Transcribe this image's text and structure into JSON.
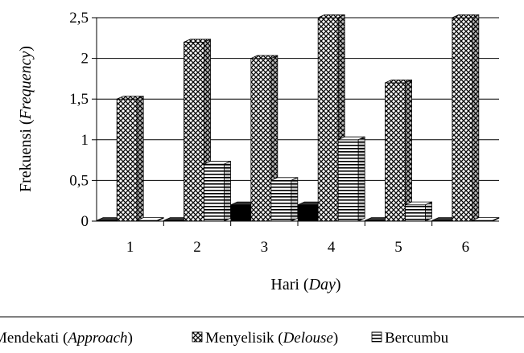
{
  "chart_data": {
    "type": "bar",
    "x_title": {
      "main": "Hari (",
      "italic": "Day",
      "close": ")"
    },
    "y_title": {
      "main": "Frekuensi (",
      "italic": "Frequency",
      "close": ")"
    },
    "ylim": [
      0,
      2.5
    ],
    "y_ticks": [
      "0",
      "0,5",
      "1",
      "1,5",
      "2",
      "2,5"
    ],
    "categories": [
      "1",
      "2",
      "3",
      "4",
      "5",
      "6"
    ],
    "grid": true,
    "legend_placement": "bottom",
    "series": [
      {
        "name": "Mendekati (Approach)",
        "legend_main": "Mendekati (",
        "legend_italic": "Approach",
        "legend_close": ")",
        "pattern": "solid-black",
        "values": [
          0,
          0,
          0.2,
          0.2,
          0,
          0
        ]
      },
      {
        "name": "Menyelisik (Delouse)",
        "legend_main": "Menyelisik (",
        "legend_italic": "Delouse",
        "legend_close": ")",
        "pattern": "crosshatch",
        "values": [
          1.5,
          2.2,
          2.0,
          2.5,
          1.7,
          2.5
        ]
      },
      {
        "name": "Bercumbu",
        "legend_main": "Bercumbu",
        "legend_italic": "",
        "legend_close": "",
        "pattern": "horizontal-lines",
        "values": [
          0,
          0.7,
          0.5,
          1.0,
          0.2,
          0
        ]
      }
    ]
  }
}
